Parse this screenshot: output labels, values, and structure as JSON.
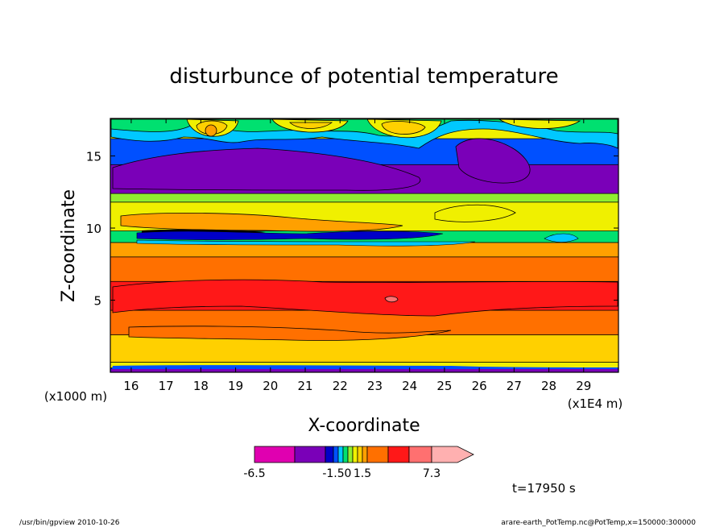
{
  "chart_data": {
    "type": "heatmap",
    "title": "disturbunce of potential temperature",
    "xlabel": "X-coordinate",
    "ylabel": "Z-coordinate",
    "x_unit_note": "(x1E4 m)",
    "y_unit_note": "(x1000 m)",
    "xlim": [
      15.4,
      30.0
    ],
    "ylim": [
      0.0,
      17.6
    ],
    "x_ticks": [
      "16",
      "17",
      "18",
      "19",
      "20",
      "21",
      "22",
      "23",
      "24",
      "25",
      "26",
      "27",
      "28",
      "29"
    ],
    "y_ticks": [
      "5",
      "10",
      "15"
    ],
    "x_tick_values": [
      16,
      17,
      18,
      19,
      20,
      21,
      22,
      23,
      24,
      25,
      26,
      27,
      28,
      29
    ],
    "y_tick_values": [
      5,
      10,
      15
    ],
    "colorbar": {
      "labels": [
        "-6.5",
        "-1.5",
        "0",
        "1.5",
        "7.3"
      ],
      "levels": [
        -6.5,
        -4.5,
        -3.5,
        -1.5,
        -1.0,
        -0.5,
        0.0,
        0.5,
        1.0,
        1.5,
        3.0,
        4.5,
        6.0,
        7.3
      ],
      "colors": [
        "#e000b0",
        "#7a00b8",
        "#0000c8",
        "#0050ff",
        "#00c8ff",
        "#00e070",
        "#90ee30",
        "#f0f000",
        "#ffd000",
        "#ffa000",
        "#ff7000",
        "#ff1818",
        "#ff7070",
        "#ffb0b0"
      ]
    },
    "bands": [
      {
        "z": [
          0.0,
          0.3
        ],
        "value": -3.5
      },
      {
        "z": [
          0.3,
          0.7
        ],
        "value": 0.5
      },
      {
        "z": [
          0.7,
          2.6
        ],
        "value": 1.2
      },
      {
        "z": [
          2.6,
          4.3
        ],
        "value": 3.0
      },
      {
        "z": [
          4.3,
          6.3
        ],
        "value": 4.6
      },
      {
        "z": [
          6.3,
          8.0
        ],
        "value": 3.0
      },
      {
        "z": [
          8.0,
          9.0
        ],
        "value": 1.5
      },
      {
        "z": [
          9.0,
          9.8
        ],
        "value": -0.3
      },
      {
        "z": [
          9.8,
          11.8
        ],
        "value": 0.7
      },
      {
        "z": [
          11.8,
          12.4
        ],
        "value": 0.0
      },
      {
        "z": [
          12.4,
          14.4
        ],
        "value": -4.0
      },
      {
        "z": [
          14.4,
          16.2
        ],
        "value": -1.3
      },
      {
        "z": [
          16.2,
          17.6
        ],
        "value": 0.7
      }
    ],
    "annotation": "t=17950 s"
  },
  "footer": {
    "left": "/usr/bin/gpview   2010-10-26",
    "right": "arare-earth_PotTemp.nc@PotTemp,x=150000:300000"
  }
}
